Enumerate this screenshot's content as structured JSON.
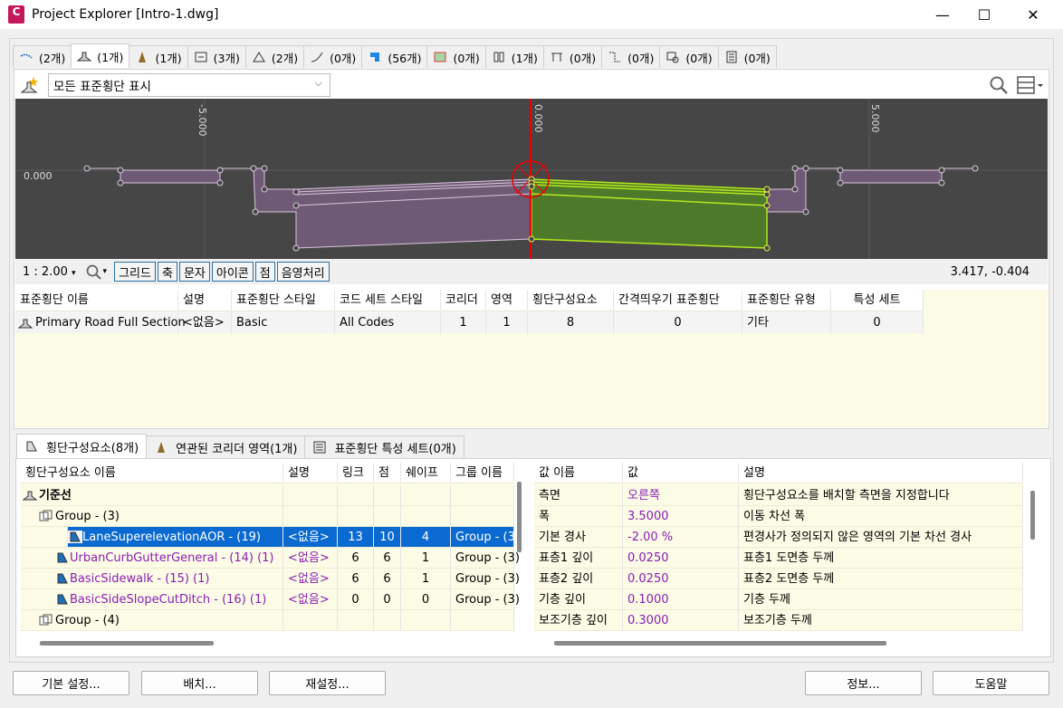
{
  "window": {
    "title": "Project Explorer [Intro-1.dwg]",
    "app_icon_text": "C",
    "minimize": "—",
    "maximize": "☐",
    "close": "✕"
  },
  "tabs": [
    {
      "label": "(2개)",
      "icon": "alignment-icon"
    },
    {
      "label": "(1개)",
      "icon": "assembly-icon"
    },
    {
      "label": "(1개)",
      "icon": "corridor-icon"
    },
    {
      "label": "(3개)",
      "icon": "subassembly-icon"
    },
    {
      "label": "(2개)",
      "icon": "surface-icon"
    },
    {
      "label": "(0개)",
      "icon": "profile-icon"
    },
    {
      "label": "(56개)",
      "icon": "point-icon"
    },
    {
      "label": "(0개)",
      "icon": "parcel-icon"
    },
    {
      "label": "(1개)",
      "icon": "pipe-network-icon"
    },
    {
      "label": "(0개)",
      "icon": "pressure-network-icon"
    },
    {
      "label": "(0개)",
      "icon": "feature-line-icon"
    },
    {
      "label": "(0개)",
      "icon": "sample-line-icon"
    },
    {
      "label": "(0개)",
      "icon": "document-icon"
    }
  ],
  "filter": {
    "selected": "모든 표준횡단 표시"
  },
  "viewer": {
    "axis_labels": [
      "-5.000",
      "0.000",
      "5.000"
    ],
    "y_label": "0.000"
  },
  "viewbar": {
    "scale": "1 : 2.00",
    "buttons": [
      "그리드",
      "축",
      "문자",
      "아이콘",
      "점",
      "음영처리"
    ],
    "coords": "3.417, -0.404"
  },
  "assembly_grid": {
    "columns": [
      "표준횡단 이름",
      "설명",
      "표준횡단 스타일",
      "코드 세트 스타일",
      "코리더",
      "영역",
      "횡단구성요소",
      "간격띄우기 표준횡단",
      "표준횡단 유형",
      "특성 세트"
    ],
    "rows": [
      [
        "Primary Road Full Section",
        "<없음>",
        "Basic",
        "All Codes",
        "1",
        "1",
        "8",
        "0",
        "기타",
        "0"
      ]
    ]
  },
  "bottom_tabs": [
    "횡단구성요소(8개)",
    "연관된 코리더 영역(1개)",
    "표준횡단 특성 세트(0개)"
  ],
  "sub_grid": {
    "columns": [
      "횡단구성요소 이름",
      "설명",
      "링크",
      "점",
      "쉐이프",
      "그룹 이름"
    ],
    "rows": [
      {
        "name": "기준선",
        "desc": "",
        "links": "",
        "points": "",
        "shapes": "",
        "group": "",
        "level": 0
      },
      {
        "name": "Group - (3)",
        "desc": "",
        "links": "",
        "points": "",
        "shapes": "",
        "group": "",
        "level": 1
      },
      {
        "name": "LaneSuperelevationAOR - (19)",
        "desc": "<없음>",
        "links": "13",
        "points": "10",
        "shapes": "4",
        "group": "Group - (3)",
        "level": 2
      },
      {
        "name": "UrbanCurbGutterGeneral - (14) (1)",
        "desc": "<없음>",
        "links": "6",
        "points": "6",
        "shapes": "1",
        "group": "Group - (3)",
        "level": 2
      },
      {
        "name": "BasicSidewalk - (15) (1)",
        "desc": "<없음>",
        "links": "6",
        "points": "6",
        "shapes": "1",
        "group": "Group - (3)",
        "level": 2
      },
      {
        "name": "BasicSideSlopeCutDitch - (16) (1)",
        "desc": "<없음>",
        "links": "0",
        "points": "0",
        "shapes": "0",
        "group": "Group - (3)",
        "level": 2
      },
      {
        "name": "Group - (4)",
        "desc": "",
        "links": "",
        "points": "",
        "shapes": "",
        "group": "",
        "level": 1
      }
    ]
  },
  "param_grid": {
    "columns": [
      "값 이름",
      "값",
      "설명"
    ],
    "rows": [
      [
        "측면",
        "오른쪽",
        "횡단구성요소를 배치할 측면을 지정합니다"
      ],
      [
        "폭",
        "3.5000",
        "이동 차선 폭"
      ],
      [
        "기본 경사",
        "-2.00 %",
        "편경사가 정의되지 않은 영역의 기본 차선 경사"
      ],
      [
        "표층1 깊이",
        "0.0250",
        "표층1 도면층 두께"
      ],
      [
        "표층2 깊이",
        "0.0250",
        "표층2 도면층 두께"
      ],
      [
        "기층 깊이",
        "0.1000",
        "기층 두께"
      ],
      [
        "보조기층 깊이",
        "0.3000",
        "보조기층 두께"
      ]
    ]
  },
  "footer": {
    "defaults": "기본 설정...",
    "place": "배치...",
    "reset": "재설정...",
    "info": "정보...",
    "help": "도움말"
  }
}
